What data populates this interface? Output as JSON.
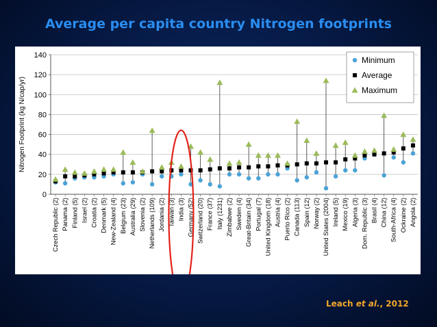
{
  "slide": {
    "title": "Average per capita country Nitrogen footprints",
    "citation_author": "Leach ",
    "citation_etal": "et al.",
    "citation_year": ", 2012"
  },
  "chart_data": {
    "type": "scatter",
    "title": "",
    "xlabel": "",
    "ylabel": "Nitrogen Footprint (kg N/cap/yr)",
    "ylim": [
      0,
      140
    ],
    "yticks": [
      0,
      20,
      40,
      60,
      80,
      100,
      120,
      140
    ],
    "grid": true,
    "legend_position": "top-right",
    "categories": [
      "Czech Republic (2)",
      "Panama (2)",
      "Finland (5)",
      "Israel (2)",
      "Croatia (2)",
      "Denmark (5)",
      "New-Zealand (4)",
      "Belgium (23)",
      "Australia (29)",
      "Slovenia (2)",
      "Netherlands (109)",
      "Jordania (2)",
      "Taiwan (3)",
      "India (3)",
      "Germany (52)",
      "Switzerland (20)",
      "France (37)",
      "Italy (1231)",
      "Zimbabwe (2)",
      "Sweden (4)",
      "Great-Britain (34)",
      "Portugal (7)",
      "United Kingdom (18)",
      "Austria (4)",
      "Puerto Rico (2)",
      "Canada (113)",
      "Spain (12)",
      "Norway (2)",
      "United States (2004)",
      "Ireland (5)",
      "Mexico (19)",
      "Algeria (3)",
      "Dom. Republic (3)",
      "Brasil (4)",
      "China (12)",
      "South-Africa (4)",
      "Ockraine (2)",
      "Angola (2)"
    ],
    "series": [
      {
        "name": "Minimum",
        "color": "#4aa3d6",
        "marker": "circle",
        "values": [
          12,
          11,
          16,
          17,
          17,
          18,
          20,
          11,
          12,
          20,
          10,
          18,
          18,
          20,
          10,
          14,
          10,
          8,
          20,
          20,
          16,
          16,
          20,
          20,
          26,
          14,
          17,
          22,
          6,
          18,
          24,
          24,
          36,
          40,
          19,
          37,
          32,
          41
        ]
      },
      {
        "name": "Average",
        "color": "#000000",
        "marker": "square",
        "values": [
          13,
          18,
          18,
          19,
          20,
          21,
          22,
          22,
          22,
          22,
          23,
          23,
          24,
          24,
          24,
          24,
          25,
          26,
          26,
          27,
          27,
          28,
          28,
          29,
          29,
          30,
          31,
          31,
          32,
          32,
          35,
          36,
          39,
          40,
          41,
          42,
          46,
          49
        ]
      },
      {
        "name": "Maximum",
        "color": "#9bbb59",
        "marker": "triangle",
        "values": [
          15,
          25,
          22,
          21,
          23,
          25,
          25,
          42,
          32,
          23,
          64,
          27,
          32,
          28,
          48,
          42,
          35,
          112,
          31,
          32,
          50,
          39,
          39,
          39,
          31,
          73,
          54,
          41,
          114,
          49,
          52,
          39,
          43,
          44,
          79,
          45,
          60,
          55
        ]
      }
    ],
    "annotation": "India (3)"
  }
}
